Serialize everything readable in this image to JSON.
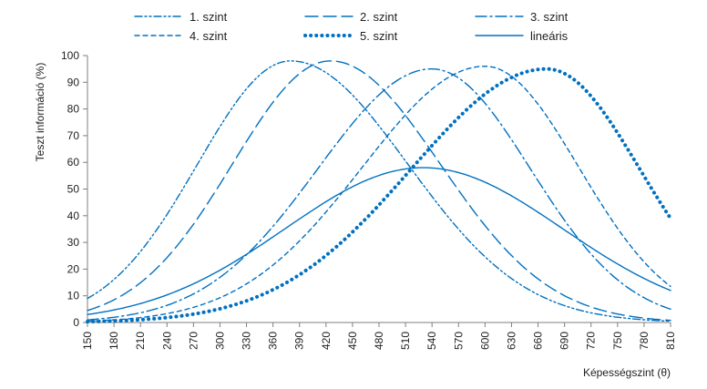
{
  "chart_data": {
    "type": "line",
    "xlabel": "Képességszint (θ)",
    "ylabel": "Teszt információ (%)",
    "xlim": [
      150,
      810
    ],
    "ylim": [
      0,
      100
    ],
    "x_ticks": [
      "150",
      "180",
      "210",
      "240",
      "270",
      "300",
      "330",
      "360",
      "390",
      "420",
      "450",
      "480",
      "510",
      "540",
      "570",
      "600",
      "630",
      "660",
      "690",
      "720",
      "750",
      "780",
      "810"
    ],
    "y_ticks": [
      "0",
      "10",
      "20",
      "30",
      "40",
      "50",
      "60",
      "70",
      "80",
      "90",
      "100"
    ],
    "grid": false,
    "legend_position": "top",
    "color": "#0070C0",
    "series": [
      {
        "name": "1. szint",
        "style": "dash-dot-dot",
        "peak_x": 380,
        "peak_y": 98,
        "start_y": 9,
        "end_y": 0.5
      },
      {
        "name": "2. szint",
        "style": "long-dash",
        "peak_x": 425,
        "peak_y": 98,
        "start_y": 4.5,
        "end_y": 0.8
      },
      {
        "name": "3. szint",
        "style": "dash-dot",
        "peak_x": 540,
        "peak_y": 95,
        "start_y": 1,
        "end_y": 5
      },
      {
        "name": "4. szint",
        "style": "short-dash",
        "peak_x": 600,
        "peak_y": 96,
        "start_y": 0.5,
        "end_y": 13.5
      },
      {
        "name": "5. szint",
        "style": "dotted",
        "peak_x": 670,
        "peak_y": 95,
        "start_y": 0.3,
        "end_y": 39
      },
      {
        "name": "lineáris",
        "style": "solid",
        "peak_x": 530,
        "peak_y": 58,
        "start_y": 3,
        "end_y": 12
      }
    ]
  }
}
